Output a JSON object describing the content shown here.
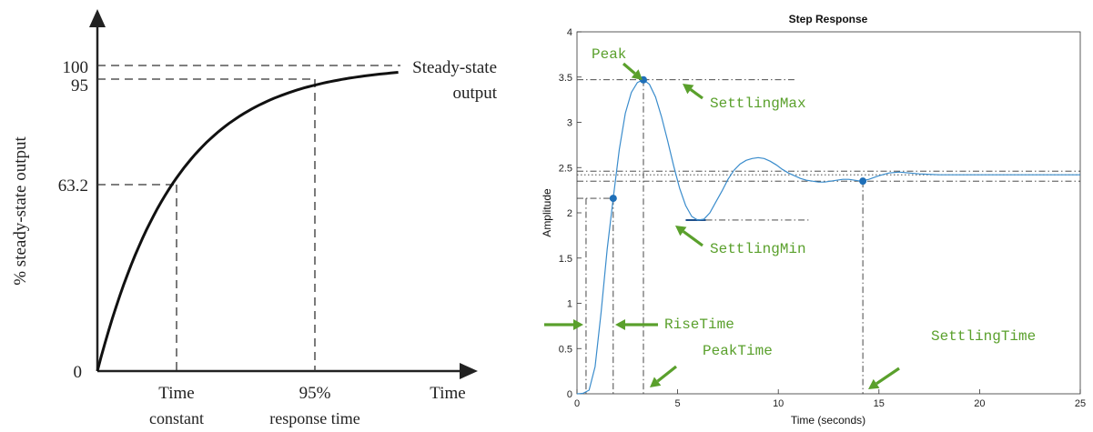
{
  "colors": {
    "curve_left": "#111111",
    "curve_right": "#3a8ccc",
    "marker": "#1f6fb8",
    "annotation": "#5aa02c",
    "axis": "#222222",
    "ref_line": "#333333"
  },
  "left_chart": {
    "ylabel": "% steady-state output",
    "xlabel": "Time",
    "ytick_labels": [
      "0",
      "63.2",
      "95",
      "100"
    ],
    "time_constant_label": [
      "Time",
      "constant"
    ],
    "response_time_label": [
      "95%",
      "response time"
    ],
    "steady_state_label": [
      "Steady-state",
      "output"
    ]
  },
  "right_chart": {
    "annotations": {
      "peak": "Peak",
      "settling_max": "SettlingMax",
      "settling_min": "SettlingMin",
      "rise_time": "RiseTime",
      "peak_time": "PeakTime",
      "settling_time": "SettlingTime"
    }
  },
  "chart_data": [
    {
      "type": "line",
      "title": "",
      "xlabel": "Time",
      "ylabel": "% steady-state output",
      "x_ticks": [
        "Time constant",
        "95% response time"
      ],
      "y_ticks": [
        0,
        63.2,
        95,
        100
      ],
      "ylim": [
        0,
        110
      ],
      "series": [
        {
          "x": [
            0,
            1,
            2,
            3,
            4,
            5
          ],
          "values": [
            0,
            63.2,
            86.5,
            95,
            98.2,
            99.3
          ]
        }
      ],
      "annotations": [
        "Steady-state output"
      ]
    },
    {
      "type": "line",
      "title": "Step Response",
      "xlabel": "Time (seconds)",
      "ylabel": "Amplitude",
      "xlim": [
        0,
        25
      ],
      "ylim": [
        0,
        4
      ],
      "x_ticks": [
        0,
        5,
        10,
        15,
        20,
        25
      ],
      "y_ticks": [
        0,
        0.5,
        1,
        1.5,
        2,
        2.5,
        3,
        3.5,
        4
      ],
      "grid": false,
      "series": [
        {
          "x": [
            0,
            0.3,
            0.6,
            0.9,
            1.2,
            1.5,
            1.8,
            2.1,
            2.4,
            2.7,
            3.0,
            3.3,
            3.6,
            3.9,
            4.2,
            4.5,
            4.8,
            5.1,
            5.4,
            5.7,
            6.0,
            6.3,
            6.6,
            6.9,
            7.2,
            7.5,
            7.8,
            8.1,
            8.4,
            8.7,
            9.0,
            9.3,
            9.6,
            9.9,
            10.2,
            10.5,
            10.8,
            11.1,
            11.4,
            11.7,
            12.0,
            12.3,
            12.6,
            12.9,
            13.2,
            13.5,
            13.8,
            14.1,
            14.5,
            15.0,
            15.5,
            16.0,
            16.5,
            17.0,
            18.0,
            19.0,
            20.0,
            21.0,
            22.0,
            23.0,
            24.0,
            25.0
          ],
          "values": [
            0,
            0.005,
            0.04,
            0.3,
            0.9,
            1.6,
            2.16,
            2.7,
            3.1,
            3.33,
            3.44,
            3.47,
            3.42,
            3.28,
            3.06,
            2.8,
            2.52,
            2.27,
            2.08,
            1.96,
            1.92,
            1.93,
            2.0,
            2.12,
            2.24,
            2.37,
            2.47,
            2.54,
            2.58,
            2.6,
            2.61,
            2.6,
            2.57,
            2.53,
            2.48,
            2.44,
            2.41,
            2.38,
            2.36,
            2.35,
            2.34,
            2.34,
            2.35,
            2.36,
            2.37,
            2.37,
            2.36,
            2.35,
            2.37,
            2.41,
            2.44,
            2.45,
            2.44,
            2.43,
            2.42,
            2.42,
            2.42,
            2.42,
            2.42,
            2.42,
            2.42,
            2.42
          ]
        }
      ],
      "characteristics": {
        "rise_time": {
          "x": 1.8,
          "y": 2.16
        },
        "peak": {
          "x": 3.3,
          "y": 3.47
        },
        "settling_min": {
          "x": 6.4,
          "y": 1.92
        },
        "settling_time": {
          "x": 14.2,
          "y": 2.35
        },
        "steady_state": 2.42,
        "settling_band": [
          2.35,
          2.46
        ],
        "rise_start_time": 0.45
      }
    }
  ]
}
